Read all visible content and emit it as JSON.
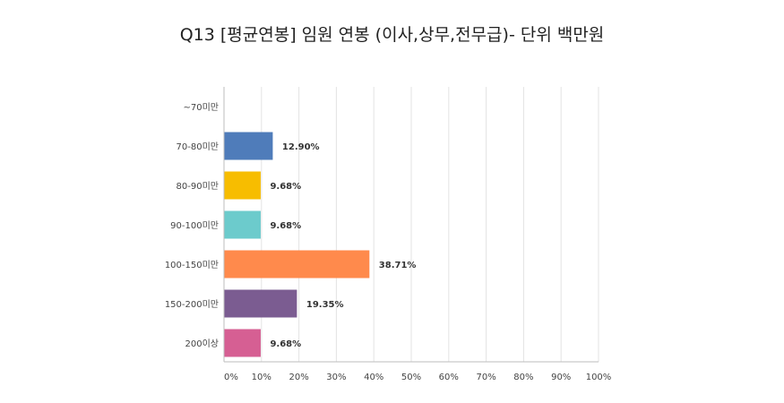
{
  "chart_data": {
    "type": "bar",
    "orientation": "horizontal",
    "title": "Q13 [평균연봉] 임원 연봉 (이사,상무,전무급)- 단위 백만원",
    "categories": [
      "~70미만",
      "70-80미만",
      "80-90미만",
      "90-100미만",
      "100-150미만",
      "150-200미만",
      "200이상"
    ],
    "values": [
      0,
      12.9,
      9.68,
      9.68,
      38.71,
      19.35,
      9.68
    ],
    "value_labels": [
      "",
      "12.90%",
      "9.68%",
      "9.68%",
      "38.71%",
      "19.35%",
      "9.68%"
    ],
    "colors": [
      "#4f7cba",
      "#4f7cba",
      "#f7bd00",
      "#6ccbcc",
      "#ff8a4c",
      "#7b5c91",
      "#d65f93"
    ],
    "x_ticks": [
      "0%",
      "10%",
      "20%",
      "30%",
      "40%",
      "50%",
      "60%",
      "70%",
      "80%",
      "90%",
      "100%"
    ],
    "xlim": [
      0,
      100
    ],
    "xlabel": "",
    "ylabel": "",
    "grid": true,
    "legend": "none"
  }
}
